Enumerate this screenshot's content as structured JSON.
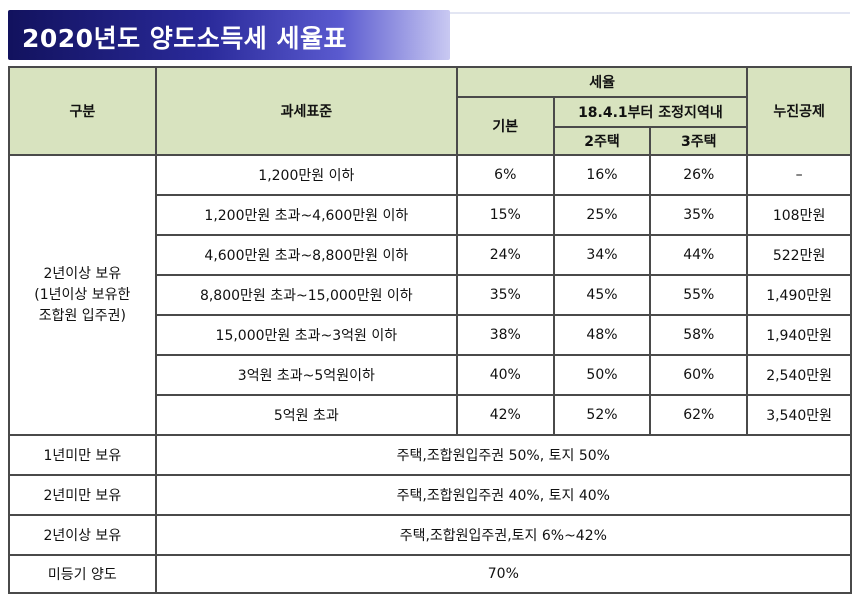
{
  "title": "2020년도 양도소득세 세율표",
  "header": {
    "category": "구분",
    "tax_base": "과세표준",
    "tax_rate": "세율",
    "basic": "기본",
    "adjusted_area": "18.4.1부터 조정지역내",
    "house2": "2주택",
    "house3": "3주택",
    "deduction": "누진공제"
  },
  "long_hold_label": [
    "2년이상 보유",
    "(1년이상 보유한",
    "조합원 입주권)"
  ],
  "brackets": [
    {
      "range": "1,200만원 이하",
      "basic": "6%",
      "h2": "16%",
      "h3": "26%",
      "deduction": "–"
    },
    {
      "range": "1,200만원 초과~4,600만원 이하",
      "basic": "15%",
      "h2": "25%",
      "h3": "35%",
      "deduction": "108만원"
    },
    {
      "range": "4,600만원 초과~8,800만원 이하",
      "basic": "24%",
      "h2": "34%",
      "h3": "44%",
      "deduction": "522만원"
    },
    {
      "range": "8,800만원 초과~15,000만원 이하",
      "basic": "35%",
      "h2": "45%",
      "h3": "55%",
      "deduction": "1,490만원"
    },
    {
      "range": "15,000만원 초과~3억원 이하",
      "basic": "38%",
      "h2": "48%",
      "h3": "58%",
      "deduction": "1,940만원"
    },
    {
      "range": "3억원 초과~5억원이하",
      "basic": "40%",
      "h2": "50%",
      "h3": "60%",
      "deduction": "2,540만원"
    },
    {
      "range": "5억원 초과",
      "basic": "42%",
      "h2": "52%",
      "h3": "62%",
      "deduction": "3,540만원"
    }
  ],
  "other_rows": [
    {
      "label": "1년미만 보유",
      "value": "주택,조합원입주권 50%, 토지 50%"
    },
    {
      "label": "2년미만 보유",
      "value": "주택,조합원입주권 40%, 토지 40%"
    },
    {
      "label": "2년이상 보유",
      "value": "주택,조합원입주권,토지 6%~42%"
    },
    {
      "label": "미등기 양도",
      "value": "70%"
    }
  ]
}
